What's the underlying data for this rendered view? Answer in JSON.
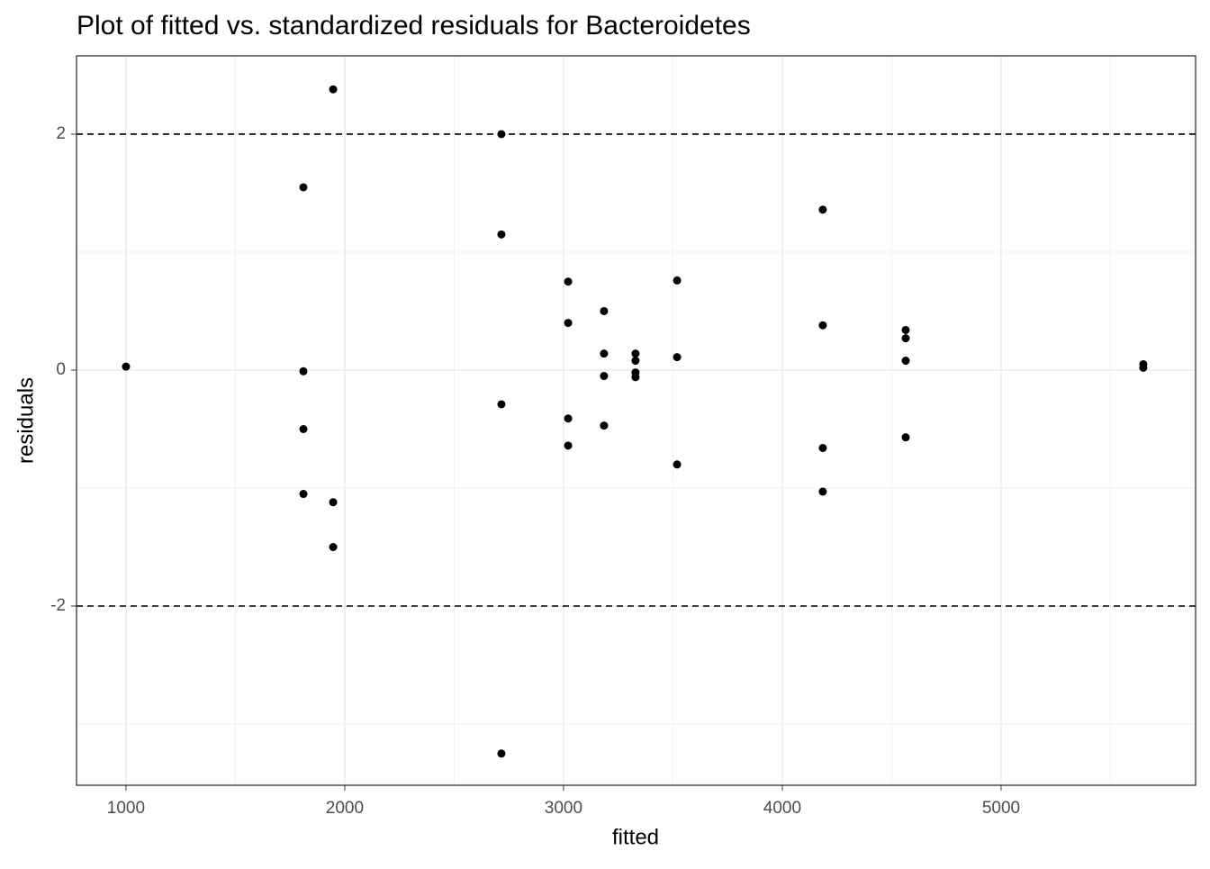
{
  "chart_data": {
    "type": "scatter",
    "title": "Plot of fitted vs. standardized residuals for Bacteroidetes",
    "x_label": "fitted",
    "y_label": "residuals",
    "xlim": [
      774,
      5889
    ],
    "ylim": [
      -3.519,
      2.664
    ],
    "xticks": [
      1000,
      2000,
      3000,
      4000,
      5000
    ],
    "yticks": [
      -2,
      0,
      2
    ],
    "xminor": [
      1500,
      2500,
      3500,
      4500,
      5500
    ],
    "yminor": [
      -3,
      -1,
      1
    ],
    "hlines": [
      -2,
      2
    ],
    "grid": true,
    "color": "#000000",
    "x": [
      1000,
      1811,
      1811,
      1811,
      1811,
      1947,
      1947,
      1947,
      2716,
      2716,
      2716,
      2716,
      3021,
      3021,
      3021,
      3021,
      3185,
      3185,
      3185,
      3185,
      3329,
      3329,
      3329,
      3329,
      3519,
      3519,
      3519,
      4185,
      4185,
      4185,
      4185,
      4564,
      4564,
      4564,
      4564,
      5650,
      5650
    ],
    "values": [
      0.03,
      1.55,
      -0.01,
      -0.5,
      -1.05,
      2.38,
      -1.12,
      -1.5,
      2.0,
      1.15,
      -0.29,
      -3.25,
      0.75,
      0.4,
      -0.41,
      -0.64,
      0.5,
      0.14,
      -0.05,
      -0.47,
      0.14,
      0.08,
      -0.02,
      -0.06,
      0.76,
      0.11,
      -0.8,
      1.36,
      0.38,
      -0.66,
      -1.03,
      0.34,
      0.27,
      0.08,
      -0.57,
      0.05,
      0.02
    ]
  }
}
